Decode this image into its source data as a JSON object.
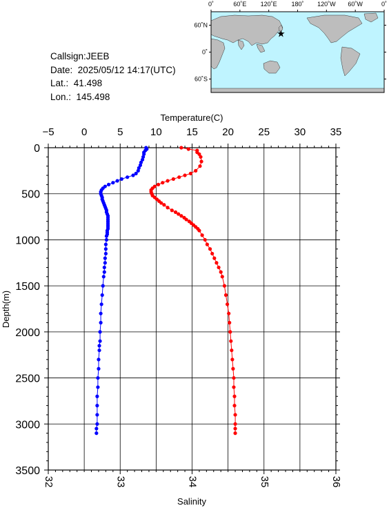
{
  "station": {
    "callsign_label": "Callsign:",
    "callsign": "JEEB",
    "date_label": "Date:",
    "date": "2025/05/12 14:17(UTC)",
    "lat_label": "Lat.:",
    "lat": "41.498",
    "lon_label": "Lon.:",
    "lon": "145.498"
  },
  "map": {
    "top_ticks": [
      "0˚",
      "60˚E",
      "120˚E",
      "180˚",
      "120˚W",
      "60˚W",
      "0˚"
    ],
    "lat_ticks": [
      "60˚N",
      "0˚",
      "60˚S"
    ],
    "marker": {
      "lat": 41.498,
      "lon": 145.498,
      "color": "#ff0000"
    },
    "ocean_color": "#bff4ff",
    "land_color": "#bdbdbd"
  },
  "chart_data": {
    "type": "line",
    "ylabel": "Depth(m)",
    "ylim": [
      3500,
      0
    ],
    "yticks": [
      "0",
      "500",
      "1000",
      "1500",
      "2000",
      "2500",
      "3000",
      "3500"
    ],
    "temperature_axis": {
      "label": "Temperature(C)",
      "range": [
        -5,
        35
      ],
      "ticks": [
        "−5",
        "0",
        "5",
        "10",
        "15",
        "20",
        "25",
        "30",
        "35"
      ]
    },
    "salinity_axis": {
      "label": "Salinity",
      "range": [
        32,
        36
      ],
      "ticks": [
        "32",
        "33",
        "34",
        "35",
        "36"
      ]
    },
    "grid": true,
    "series": [
      {
        "axis": "temperature",
        "color": "#0000ff",
        "depth": [
          0,
          15,
          30,
          50,
          70,
          100,
          130,
          160,
          190,
          220,
          250,
          280,
          300,
          320,
          340,
          360,
          380,
          400,
          420,
          440,
          460,
          480,
          500,
          520,
          540,
          560,
          580,
          600,
          620,
          640,
          660,
          680,
          700,
          720,
          740,
          760,
          780,
          800,
          820,
          840,
          860,
          880,
          900,
          920,
          940,
          960,
          1000,
          1050,
          1100,
          1150,
          1200,
          1250,
          1300,
          1350,
          1400,
          1500,
          1600,
          1700,
          1800,
          1900,
          2000,
          2100,
          2150,
          2200,
          2300,
          2400,
          2500,
          2600,
          2700,
          2800,
          2900,
          3000,
          3050,
          3100
        ],
        "values": [
          8.6,
          8.7,
          8.5,
          8.3,
          8.3,
          8.2,
          8.1,
          7.9,
          7.8,
          7.6,
          7.5,
          7.2,
          6.8,
          6.0,
          5.2,
          4.6,
          4.0,
          3.4,
          2.9,
          2.6,
          2.4,
          2.3,
          2.3,
          2.4,
          2.5,
          2.5,
          2.6,
          2.7,
          2.8,
          2.9,
          3.0,
          3.1,
          3.1,
          3.2,
          3.3,
          3.3,
          3.3,
          3.3,
          3.3,
          3.3,
          3.3,
          3.3,
          3.2,
          3.2,
          3.2,
          3.1,
          3.1,
          3.0,
          3.0,
          3.0,
          2.9,
          2.9,
          2.8,
          2.8,
          2.7,
          2.6,
          2.5,
          2.4,
          2.3,
          2.3,
          2.2,
          2.2,
          2.1,
          2.1,
          2.0,
          2.0,
          1.9,
          1.9,
          1.8,
          1.8,
          1.8,
          1.8,
          1.7,
          1.7
        ]
      },
      {
        "axis": "salinity",
        "color": "#ff0000",
        "depth": [
          0,
          15,
          30,
          50,
          70,
          100,
          150,
          200,
          250,
          280,
          300,
          320,
          340,
          360,
          380,
          400,
          420,
          440,
          460,
          480,
          500,
          520,
          540,
          560,
          580,
          600,
          620,
          650,
          680,
          700,
          720,
          740,
          760,
          780,
          800,
          820,
          840,
          860,
          880,
          900,
          950,
          1000,
          1050,
          1100,
          1150,
          1200,
          1250,
          1300,
          1350,
          1400,
          1500,
          1600,
          1700,
          1800,
          1900,
          2000,
          2100,
          2200,
          2300,
          2400,
          2500,
          2600,
          2700,
          2800,
          2900,
          3000,
          3050,
          3100
        ],
        "values": [
          33.85,
          33.95,
          34.07,
          34.07,
          34.1,
          34.12,
          34.13,
          34.11,
          34.05,
          33.98,
          33.9,
          33.82,
          33.74,
          33.66,
          33.59,
          33.53,
          33.48,
          33.45,
          33.43,
          33.43,
          33.44,
          33.45,
          33.48,
          33.51,
          33.54,
          33.57,
          33.61,
          33.66,
          33.72,
          33.77,
          33.81,
          33.85,
          33.89,
          33.92,
          33.96,
          33.99,
          34.02,
          34.05,
          34.08,
          34.1,
          34.14,
          34.18,
          34.21,
          34.25,
          34.28,
          34.31,
          34.34,
          34.37,
          34.4,
          34.42,
          34.45,
          34.47,
          34.49,
          34.51,
          34.52,
          34.53,
          34.54,
          34.55,
          34.56,
          34.57,
          34.58,
          34.58,
          34.59,
          34.59,
          34.6,
          34.6,
          34.6,
          34.6
        ]
      }
    ]
  }
}
